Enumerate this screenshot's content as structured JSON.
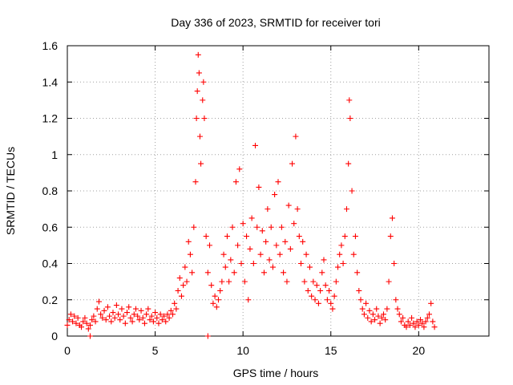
{
  "chart_data": {
    "type": "scatter",
    "title": "Day 336 of 2023, SRMTID for receiver tori",
    "xlabel": "GPS time / hours",
    "ylabel": "SRMTID / TECUs",
    "xlim": [
      0,
      24
    ],
    "ylim": [
      0,
      1.6
    ],
    "xticks": [
      0,
      5,
      10,
      15,
      20
    ],
    "xtick_labels": [
      "0",
      "5",
      "10",
      "15",
      "20"
    ],
    "yticks": [
      0,
      0.2,
      0.4,
      0.6,
      0.8,
      1,
      1.2,
      1.4,
      1.6
    ],
    "ytick_labels": [
      "0",
      "0.2",
      "0.4",
      "0.6",
      "0.8",
      "1",
      "1.2",
      "1.4",
      "1.6"
    ],
    "grid": true,
    "marker": "plus",
    "color": "#ff0000",
    "series": [
      {
        "name": "SRMTID",
        "points": [
          [
            0.0,
            0.06
          ],
          [
            0.1,
            0.09
          ],
          [
            0.2,
            0.12
          ],
          [
            0.3,
            0.08
          ],
          [
            0.4,
            0.11
          ],
          [
            0.5,
            0.07
          ],
          [
            0.6,
            0.1
          ],
          [
            0.7,
            0.06
          ],
          [
            0.8,
            0.05
          ],
          [
            0.9,
            0.08
          ],
          [
            1.0,
            0.1
          ],
          [
            1.1,
            0.07
          ],
          [
            1.2,
            0.04
          ],
          [
            1.3,
            0.06
          ],
          [
            1.4,
            0.09
          ],
          [
            1.5,
            0.11
          ],
          [
            1.6,
            0.08
          ],
          [
            1.7,
            0.15
          ],
          [
            1.8,
            0.19
          ],
          [
            1.9,
            0.12
          ],
          [
            2.0,
            0.1
          ],
          [
            2.1,
            0.14
          ],
          [
            2.2,
            0.09
          ],
          [
            2.3,
            0.16
          ],
          [
            2.4,
            0.11
          ],
          [
            2.5,
            0.08
          ],
          [
            2.6,
            0.13
          ],
          [
            2.7,
            0.1
          ],
          [
            2.8,
            0.17
          ],
          [
            2.9,
            0.12
          ],
          [
            3.0,
            0.09
          ],
          [
            3.1,
            0.15
          ],
          [
            3.2,
            0.11
          ],
          [
            3.3,
            0.07
          ],
          [
            3.4,
            0.13
          ],
          [
            3.5,
            0.16
          ],
          [
            3.6,
            0.1
          ],
          [
            3.7,
            0.08
          ],
          [
            3.8,
            0.12
          ],
          [
            3.9,
            0.15
          ],
          [
            4.0,
            0.11
          ],
          [
            4.1,
            0.09
          ],
          [
            4.2,
            0.14
          ],
          [
            4.3,
            0.1
          ],
          [
            4.4,
            0.07
          ],
          [
            4.5,
            0.12
          ],
          [
            4.6,
            0.15
          ],
          [
            4.7,
            0.09
          ],
          [
            4.8,
            0.11
          ],
          [
            4.9,
            0.08
          ],
          [
            5.0,
            0.13
          ],
          [
            5.1,
            0.1
          ],
          [
            5.2,
            0.07
          ],
          [
            5.3,
            0.12
          ],
          [
            5.4,
            0.09
          ],
          [
            5.5,
            0.11
          ],
          [
            5.6,
            0.08
          ],
          [
            5.7,
            0.12
          ],
          [
            5.8,
            0.1
          ],
          [
            5.9,
            0.14
          ],
          [
            6.0,
            0.12
          ],
          [
            6.1,
            0.18
          ],
          [
            6.2,
            0.15
          ],
          [
            6.3,
            0.25
          ],
          [
            6.4,
            0.32
          ],
          [
            6.5,
            0.22
          ],
          [
            6.6,
            0.28
          ],
          [
            6.7,
            0.38
          ],
          [
            6.8,
            0.3
          ],
          [
            6.9,
            0.52
          ],
          [
            7.0,
            0.45
          ],
          [
            7.1,
            0.35
          ],
          [
            7.2,
            0.6
          ],
          [
            7.3,
            0.85
          ],
          [
            7.35,
            1.2
          ],
          [
            7.4,
            1.35
          ],
          [
            7.45,
            1.55
          ],
          [
            7.5,
            1.45
          ],
          [
            7.55,
            1.1
          ],
          [
            7.6,
            0.95
          ],
          [
            7.7,
            1.3
          ],
          [
            7.75,
            1.4
          ],
          [
            7.8,
            1.2
          ],
          [
            7.9,
            0.55
          ],
          [
            8.0,
            0.35
          ],
          [
            8.1,
            0.5
          ],
          [
            8.2,
            0.28
          ],
          [
            8.3,
            0.18
          ],
          [
            8.4,
            0.22
          ],
          [
            8.5,
            0.16
          ],
          [
            8.6,
            0.2
          ],
          [
            8.7,
            0.25
          ],
          [
            8.8,
            0.3
          ],
          [
            8.9,
            0.45
          ],
          [
            9.0,
            0.38
          ],
          [
            9.1,
            0.55
          ],
          [
            9.2,
            0.3
          ],
          [
            9.3,
            0.42
          ],
          [
            9.4,
            0.6
          ],
          [
            9.5,
            0.35
          ],
          [
            9.6,
            0.85
          ],
          [
            9.7,
            0.5
          ],
          [
            9.8,
            0.92
          ],
          [
            9.9,
            0.4
          ],
          [
            10.0,
            0.62
          ],
          [
            10.1,
            0.3
          ],
          [
            10.2,
            0.55
          ],
          [
            10.3,
            0.2
          ],
          [
            10.4,
            0.48
          ],
          [
            10.5,
            0.65
          ],
          [
            10.6,
            0.4
          ],
          [
            10.7,
            1.05
          ],
          [
            10.8,
            0.6
          ],
          [
            10.9,
            0.82
          ],
          [
            11.0,
            0.45
          ],
          [
            11.1,
            0.58
          ],
          [
            11.2,
            0.35
          ],
          [
            11.3,
            0.52
          ],
          [
            11.4,
            0.7
          ],
          [
            11.5,
            0.42
          ],
          [
            11.6,
            0.6
          ],
          [
            11.7,
            0.38
          ],
          [
            11.8,
            0.78
          ],
          [
            11.9,
            0.5
          ],
          [
            12.0,
            0.85
          ],
          [
            12.1,
            0.45
          ],
          [
            12.2,
            0.6
          ],
          [
            12.3,
            0.35
          ],
          [
            12.4,
            0.52
          ],
          [
            12.5,
            0.3
          ],
          [
            12.6,
            0.72
          ],
          [
            12.7,
            0.48
          ],
          [
            12.8,
            0.95
          ],
          [
            12.9,
            0.62
          ],
          [
            13.0,
            1.1
          ],
          [
            13.1,
            0.7
          ],
          [
            13.2,
            0.55
          ],
          [
            13.3,
            0.4
          ],
          [
            13.4,
            0.52
          ],
          [
            13.5,
            0.3
          ],
          [
            13.6,
            0.45
          ],
          [
            13.7,
            0.25
          ],
          [
            13.8,
            0.38
          ],
          [
            13.9,
            0.22
          ],
          [
            14.0,
            0.3
          ],
          [
            14.1,
            0.2
          ],
          [
            14.2,
            0.28
          ],
          [
            14.3,
            0.18
          ],
          [
            14.4,
            0.25
          ],
          [
            14.5,
            0.35
          ],
          [
            14.6,
            0.42
          ],
          [
            14.7,
            0.28
          ],
          [
            14.8,
            0.2
          ],
          [
            14.9,
            0.25
          ],
          [
            15.0,
            0.18
          ],
          [
            15.1,
            0.15
          ],
          [
            15.2,
            0.22
          ],
          [
            15.3,
            0.3
          ],
          [
            15.4,
            0.38
          ],
          [
            15.5,
            0.45
          ],
          [
            15.6,
            0.5
          ],
          [
            15.7,
            0.4
          ],
          [
            15.8,
            0.55
          ],
          [
            15.9,
            0.7
          ],
          [
            16.0,
            0.95
          ],
          [
            16.05,
            1.3
          ],
          [
            16.1,
            1.2
          ],
          [
            16.2,
            0.8
          ],
          [
            16.3,
            0.45
          ],
          [
            16.4,
            0.55
          ],
          [
            16.5,
            0.35
          ],
          [
            16.6,
            0.25
          ],
          [
            16.7,
            0.2
          ],
          [
            16.8,
            0.15
          ],
          [
            16.9,
            0.12
          ],
          [
            17.0,
            0.18
          ],
          [
            17.1,
            0.1
          ],
          [
            17.2,
            0.14
          ],
          [
            17.3,
            0.08
          ],
          [
            17.4,
            0.12
          ],
          [
            17.5,
            0.09
          ],
          [
            17.6,
            0.15
          ],
          [
            17.7,
            0.11
          ],
          [
            17.8,
            0.07
          ],
          [
            17.9,
            0.1
          ],
          [
            18.0,
            0.12
          ],
          [
            18.1,
            0.09
          ],
          [
            18.2,
            0.15
          ],
          [
            18.3,
            0.3
          ],
          [
            18.4,
            0.55
          ],
          [
            18.5,
            0.65
          ],
          [
            18.6,
            0.4
          ],
          [
            18.7,
            0.2
          ],
          [
            18.8,
            0.15
          ],
          [
            18.9,
            0.12
          ],
          [
            19.0,
            0.08
          ],
          [
            19.1,
            0.1
          ],
          [
            19.2,
            0.06
          ],
          [
            19.3,
            0.05
          ],
          [
            19.4,
            0.08
          ],
          [
            19.5,
            0.06
          ],
          [
            19.6,
            0.1
          ],
          [
            19.7,
            0.07
          ],
          [
            19.8,
            0.05
          ],
          [
            19.9,
            0.08
          ],
          [
            20.0,
            0.06
          ],
          [
            20.1,
            0.09
          ],
          [
            20.2,
            0.07
          ],
          [
            20.3,
            0.05
          ],
          [
            20.4,
            0.08
          ],
          [
            20.5,
            0.1
          ],
          [
            20.6,
            0.12
          ],
          [
            20.7,
            0.18
          ],
          [
            20.8,
            0.08
          ],
          [
            20.9,
            0.05
          ],
          [
            1.3,
            0.0
          ],
          [
            8.0,
            0.0
          ]
        ]
      }
    ]
  }
}
